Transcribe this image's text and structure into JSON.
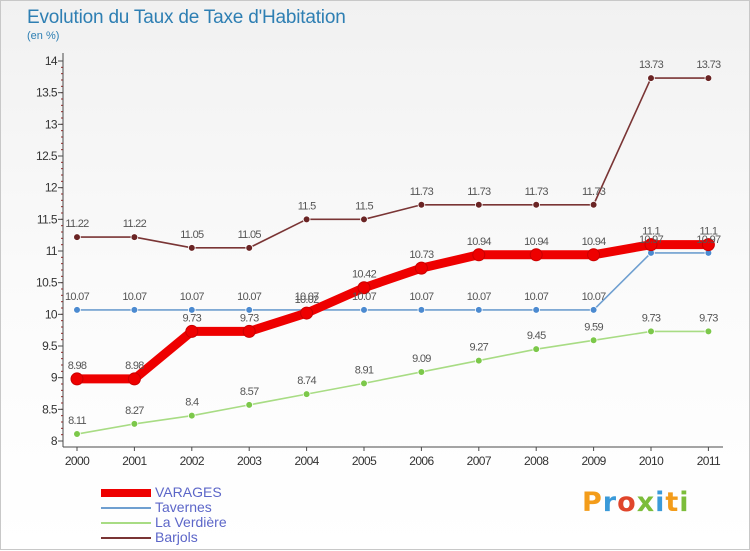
{
  "header": {
    "title": "Evolution du Taux de Taxe d'Habitation",
    "subtitle": "(en %)"
  },
  "logo": {
    "text": "Proxiti",
    "colors": [
      "#f39c1a",
      "#3a9ad9",
      "#e0452b",
      "#7cbd3a",
      "#3a9ad9",
      "#f39c1a",
      "#7cbd3a"
    ]
  },
  "chart_data": {
    "type": "line",
    "title": "Evolution du Taux de Taxe d'Habitation",
    "subtitle": "(en %)",
    "xlabel": "",
    "ylabel": "",
    "categories": [
      "2000",
      "2001",
      "2002",
      "2003",
      "2004",
      "2005",
      "2006",
      "2007",
      "2008",
      "2009",
      "2010",
      "2011"
    ],
    "ylim": [
      8,
      14
    ],
    "yticks": [
      8,
      8.5,
      9,
      9.5,
      10,
      10.5,
      11,
      11.5,
      12,
      12.5,
      13,
      13.5,
      14
    ],
    "ytick_labels": [
      "8",
      "8.5",
      "9",
      "9.5",
      "10",
      "10.5",
      "11",
      "11.5",
      "12",
      "12.5",
      "13",
      "13.5",
      "14"
    ],
    "grid": false,
    "legend_position": "bottom-left",
    "series": [
      {
        "name": "VARAGES",
        "color": "#ee0000",
        "marker_color": "#ee0000",
        "values": [
          8.98,
          8.98,
          9.73,
          9.73,
          10.02,
          10.42,
          10.73,
          10.94,
          10.94,
          10.94,
          11.1,
          11.1
        ],
        "labels": [
          "8.98",
          "8.98",
          "9.73",
          "9.73",
          "10.02",
          "10.42",
          "10.73",
          "10.94",
          "10.94",
          "10.94",
          "11.1",
          "11.1"
        ]
      },
      {
        "name": "Tavernes",
        "color": "#6f9fd0",
        "marker_color": "#4b8ad0",
        "values": [
          10.07,
          10.07,
          10.07,
          10.07,
          10.07,
          10.07,
          10.07,
          10.07,
          10.07,
          10.07,
          10.97,
          10.97
        ],
        "labels": [
          "10.07",
          "10.07",
          "10.07",
          "10.07",
          "10.07",
          "10.07",
          "10.07",
          "10.07",
          "10.07",
          "10.07",
          "10.97",
          "10.97"
        ]
      },
      {
        "name": "La Verdière",
        "color": "#a8dc84",
        "marker_color": "#7cc84a",
        "values": [
          8.11,
          8.27,
          8.4,
          8.57,
          8.74,
          8.91,
          9.09,
          9.27,
          9.45,
          9.59,
          9.73,
          9.73
        ],
        "labels": [
          "8.11",
          "8.27",
          "8.4",
          "8.57",
          "8.74",
          "8.91",
          "9.09",
          "9.27",
          "9.45",
          "9.59",
          "9.73",
          "9.73"
        ]
      },
      {
        "name": "Barjols",
        "color": "#7a3535",
        "marker_color": "#6a2424",
        "values": [
          11.22,
          11.22,
          11.05,
          11.05,
          11.5,
          11.5,
          11.73,
          11.73,
          11.73,
          11.73,
          13.73,
          13.73
        ],
        "labels": [
          "11.22",
          "11.22",
          "11.05",
          "11.05",
          "11.5",
          "11.5",
          "11.73",
          "11.73",
          "11.73",
          "11.73",
          "13.73",
          "13.73"
        ]
      }
    ]
  }
}
